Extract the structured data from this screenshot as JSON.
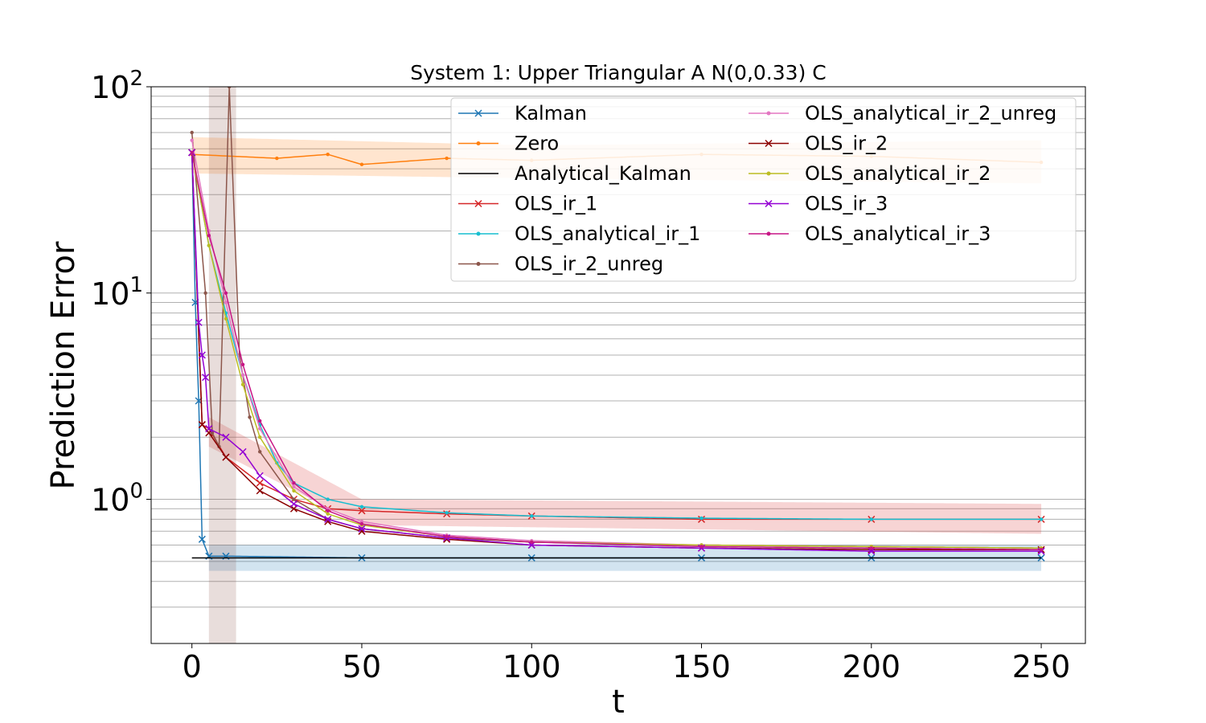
{
  "chart_data": {
    "type": "line",
    "title": "System 1: Upper Triangular A N(0,0.33) C",
    "xlabel": "t",
    "ylabel": "Prediction Error",
    "xscale": "linear",
    "yscale": "log",
    "xlim": [
      -12,
      263
    ],
    "ylim": [
      0.2,
      100
    ],
    "xticks": [
      0,
      50,
      100,
      150,
      200,
      250
    ],
    "xtick_labels": [
      "0",
      "50",
      "100",
      "150",
      "200",
      "250"
    ],
    "yticks": [
      1,
      10,
      100
    ],
    "ytick_labels": [
      {
        "base": "10",
        "exp": "0"
      },
      {
        "base": "10",
        "exp": "1"
      },
      {
        "base": "10",
        "exp": "2"
      }
    ],
    "grid": "horizontal major and minor lines on y",
    "legend": {
      "placement": "upper right",
      "columns": 2
    },
    "series": [
      {
        "name": "Kalman",
        "color": "#1f77b4",
        "marker": "x",
        "points": [
          [
            0,
            48
          ],
          [
            1,
            9
          ],
          [
            2,
            3
          ],
          [
            3,
            0.64
          ],
          [
            5,
            0.53
          ],
          [
            10,
            0.53
          ],
          [
            50,
            0.52
          ],
          [
            100,
            0.52
          ],
          [
            150,
            0.52
          ],
          [
            200,
            0.52
          ],
          [
            250,
            0.52
          ]
        ],
        "band": {
          "lower": [
            [
              5,
              0.45
            ],
            [
              250,
              0.45
            ]
          ],
          "upper": [
            [
              5,
              0.6
            ],
            [
              250,
              0.6
            ]
          ]
        }
      },
      {
        "name": "Zero",
        "color": "#ff7f0e",
        "marker": "dot",
        "points": [
          [
            0,
            47
          ],
          [
            25,
            45
          ],
          [
            40,
            47
          ],
          [
            50,
            42
          ],
          [
            75,
            45
          ],
          [
            100,
            44
          ],
          [
            150,
            47
          ],
          [
            200,
            46
          ],
          [
            250,
            43
          ]
        ],
        "band": {
          "lower": [
            [
              0,
              38
            ],
            [
              100,
              36
            ],
            [
              250,
              34
            ]
          ],
          "upper": [
            [
              0,
              57
            ],
            [
              100,
              52
            ],
            [
              250,
              55
            ]
          ]
        }
      },
      {
        "name": "Analytical_Kalman",
        "color": "#000000",
        "marker": "none",
        "points": [
          [
            0,
            0.52
          ],
          [
            250,
            0.52
          ]
        ]
      },
      {
        "name": "OLS_ir_1",
        "color": "#d62728",
        "marker": "x",
        "points": [
          [
            0,
            48
          ],
          [
            3,
            2.3
          ],
          [
            5,
            2.2
          ],
          [
            10,
            1.6
          ],
          [
            20,
            1.2
          ],
          [
            30,
            1.0
          ],
          [
            40,
            0.9
          ],
          [
            50,
            0.88
          ],
          [
            75,
            0.85
          ],
          [
            100,
            0.83
          ],
          [
            150,
            0.8
          ],
          [
            200,
            0.8
          ],
          [
            250,
            0.8
          ]
        ],
        "band": {
          "lower": [
            [
              5,
              1.8
            ],
            [
              50,
              0.75
            ],
            [
              250,
              0.68
            ]
          ],
          "upper": [
            [
              5,
              2.5
            ],
            [
              50,
              1.0
            ],
            [
              250,
              0.95
            ]
          ]
        }
      },
      {
        "name": "OLS_analytical_ir_1",
        "color": "#17becf",
        "marker": "dot",
        "points": [
          [
            0,
            48
          ],
          [
            5,
            17
          ],
          [
            10,
            8
          ],
          [
            15,
            4
          ],
          [
            20,
            2.3
          ],
          [
            25,
            1.5
          ],
          [
            30,
            1.2
          ],
          [
            40,
            1.0
          ],
          [
            50,
            0.92
          ],
          [
            75,
            0.86
          ],
          [
            100,
            0.83
          ],
          [
            150,
            0.81
          ],
          [
            200,
            0.8
          ],
          [
            250,
            0.8
          ]
        ]
      },
      {
        "name": "OLS_ir_2_unreg",
        "color": "#8c564b",
        "marker": "dot",
        "points": [
          [
            0,
            60
          ],
          [
            4,
            10
          ],
          [
            6,
            2.1
          ],
          [
            8,
            1.8
          ],
          [
            11,
            100
          ],
          [
            14,
            5
          ],
          [
            17,
            2.5
          ],
          [
            20,
            1.7
          ],
          [
            30,
            1.0
          ],
          [
            40,
            0.8
          ],
          [
            50,
            0.72
          ],
          [
            75,
            0.65
          ],
          [
            100,
            0.62
          ],
          [
            150,
            0.6
          ],
          [
            200,
            0.59
          ],
          [
            250,
            0.58
          ]
        ],
        "band": {
          "lower": [
            [
              5,
              0.2
            ],
            [
              13,
              0.2
            ]
          ],
          "upper": [
            [
              5,
              100
            ],
            [
              13,
              100
            ]
          ]
        }
      },
      {
        "name": "OLS_analytical_ir_2_unreg",
        "color": "#e377c2",
        "marker": "dot",
        "points": [
          [
            0,
            55
          ],
          [
            5,
            20
          ],
          [
            10,
            9
          ],
          [
            15,
            4
          ],
          [
            20,
            2.2
          ],
          [
            30,
            1.15
          ],
          [
            40,
            0.9
          ],
          [
            50,
            0.78
          ],
          [
            75,
            0.67
          ],
          [
            100,
            0.63
          ],
          [
            150,
            0.6
          ],
          [
            200,
            0.59
          ],
          [
            250,
            0.58
          ]
        ]
      },
      {
        "name": "OLS_ir_2",
        "color": "#8b0000",
        "marker": "x",
        "points": [
          [
            0,
            48
          ],
          [
            3,
            2.3
          ],
          [
            5,
            2.1
          ],
          [
            10,
            1.6
          ],
          [
            20,
            1.1
          ],
          [
            30,
            0.9
          ],
          [
            40,
            0.78
          ],
          [
            50,
            0.7
          ],
          [
            75,
            0.64
          ],
          [
            100,
            0.6
          ],
          [
            150,
            0.58
          ],
          [
            200,
            0.57
          ],
          [
            250,
            0.57
          ]
        ]
      },
      {
        "name": "OLS_analytical_ir_2",
        "color": "#bcbd22",
        "marker": "dot",
        "points": [
          [
            0,
            48
          ],
          [
            5,
            17
          ],
          [
            10,
            7.5
          ],
          [
            15,
            3.6
          ],
          [
            20,
            2.0
          ],
          [
            30,
            1.1
          ],
          [
            40,
            0.85
          ],
          [
            50,
            0.75
          ],
          [
            75,
            0.66
          ],
          [
            100,
            0.62
          ],
          [
            150,
            0.6
          ],
          [
            200,
            0.59
          ],
          [
            250,
            0.58
          ]
        ]
      },
      {
        "name": "OLS_ir_3",
        "color": "#9400d3",
        "marker": "x",
        "points": [
          [
            0,
            48
          ],
          [
            2,
            7.2
          ],
          [
            3,
            5
          ],
          [
            4,
            3.9
          ],
          [
            5,
            2.2
          ],
          [
            10,
            2.0
          ],
          [
            15,
            1.7
          ],
          [
            20,
            1.3
          ],
          [
            30,
            0.95
          ],
          [
            40,
            0.8
          ],
          [
            50,
            0.72
          ],
          [
            75,
            0.65
          ],
          [
            100,
            0.6
          ],
          [
            150,
            0.58
          ],
          [
            200,
            0.56
          ],
          [
            250,
            0.56
          ]
        ]
      },
      {
        "name": "OLS_analytical_ir_3",
        "color": "#c71585",
        "marker": "dot",
        "points": [
          [
            0,
            48
          ],
          [
            5,
            19
          ],
          [
            10,
            10
          ],
          [
            15,
            4.5
          ],
          [
            20,
            2.4
          ],
          [
            30,
            1.2
          ],
          [
            40,
            0.88
          ],
          [
            50,
            0.76
          ],
          [
            75,
            0.66
          ],
          [
            100,
            0.62
          ],
          [
            150,
            0.59
          ],
          [
            200,
            0.58
          ],
          [
            250,
            0.57
          ]
        ]
      }
    ]
  }
}
